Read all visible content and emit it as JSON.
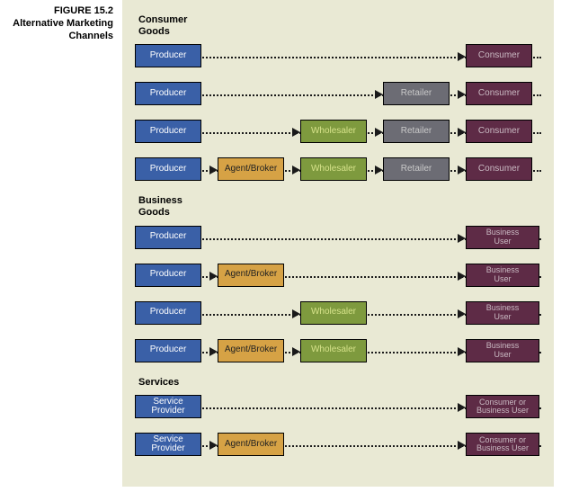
{
  "caption_line1": "FIGURE 15.2",
  "caption_line2": "Alternative Marketing",
  "caption_line3": "Channels",
  "panel_bg": "#e9e9d4",
  "colors": {
    "producer": {
      "fill": "#3a60a7",
      "text": "#ffffff"
    },
    "agent": {
      "fill": "#d6a245",
      "text": "#222222"
    },
    "wholesaler": {
      "fill": "#7e9a3e",
      "text": "#d6e28a"
    },
    "retailer": {
      "fill": "#6c6c74",
      "text": "#c9c9c9"
    },
    "consumer": {
      "fill": "#5e2b46",
      "text": "#c9b9c2"
    },
    "provider": {
      "fill": "#3a60a7",
      "text": "#ffffff"
    },
    "enduser": {
      "fill": "#5e2b46",
      "text": "#c9b9c2"
    }
  },
  "labels": {
    "producer": "Producer",
    "agent": "Agent/Broker",
    "wholesaler": "Wholesaler",
    "retailer": "Retailer",
    "consumer": "Consumer",
    "provider": "Service\nProvider",
    "bizuser": "Business\nUser",
    "enduser": "Consumer or\nBusiness User"
  },
  "sections": [
    {
      "title": "Consumer\nGoods",
      "rows": [
        [
          {
            "c": 0,
            "role": "producer",
            "k": "producer"
          },
          {
            "c": 4,
            "role": "consumer",
            "k": "consumer"
          }
        ],
        [
          {
            "c": 0,
            "role": "producer",
            "k": "producer"
          },
          {
            "c": 3,
            "role": "retailer",
            "k": "retailer"
          },
          {
            "c": 4,
            "role": "consumer",
            "k": "consumer"
          }
        ],
        [
          {
            "c": 0,
            "role": "producer",
            "k": "producer"
          },
          {
            "c": 2,
            "role": "wholesaler",
            "k": "wholesaler"
          },
          {
            "c": 3,
            "role": "retailer",
            "k": "retailer"
          },
          {
            "c": 4,
            "role": "consumer",
            "k": "consumer"
          }
        ],
        [
          {
            "c": 0,
            "role": "producer",
            "k": "producer"
          },
          {
            "c": 1,
            "role": "agent",
            "k": "agent"
          },
          {
            "c": 2,
            "role": "wholesaler",
            "k": "wholesaler"
          },
          {
            "c": 3,
            "role": "retailer",
            "k": "retailer"
          },
          {
            "c": 4,
            "role": "consumer",
            "k": "consumer"
          }
        ]
      ]
    },
    {
      "title": "Business\nGoods",
      "rows": [
        [
          {
            "c": 0,
            "role": "producer",
            "k": "producer"
          },
          {
            "c": 4,
            "role": "consumer",
            "k": "bizuser"
          }
        ],
        [
          {
            "c": 0,
            "role": "producer",
            "k": "producer"
          },
          {
            "c": 1,
            "role": "agent",
            "k": "agent"
          },
          {
            "c": 4,
            "role": "consumer",
            "k": "bizuser"
          }
        ],
        [
          {
            "c": 0,
            "role": "producer",
            "k": "producer"
          },
          {
            "c": 2,
            "role": "wholesaler",
            "k": "wholesaler"
          },
          {
            "c": 4,
            "role": "consumer",
            "k": "bizuser"
          }
        ],
        [
          {
            "c": 0,
            "role": "producer",
            "k": "producer"
          },
          {
            "c": 1,
            "role": "agent",
            "k": "agent"
          },
          {
            "c": 2,
            "role": "wholesaler",
            "k": "wholesaler"
          },
          {
            "c": 4,
            "role": "consumer",
            "k": "bizuser"
          }
        ]
      ]
    },
    {
      "title": "Services",
      "rows": [
        [
          {
            "c": 0,
            "role": "provider",
            "k": "provider"
          },
          {
            "c": 4,
            "role": "enduser",
            "k": "enduser"
          }
        ],
        [
          {
            "c": 0,
            "role": "provider",
            "k": "provider"
          },
          {
            "c": 1,
            "role": "agent",
            "k": "agent"
          },
          {
            "c": 4,
            "role": "enduser",
            "k": "enduser"
          }
        ]
      ]
    }
  ]
}
